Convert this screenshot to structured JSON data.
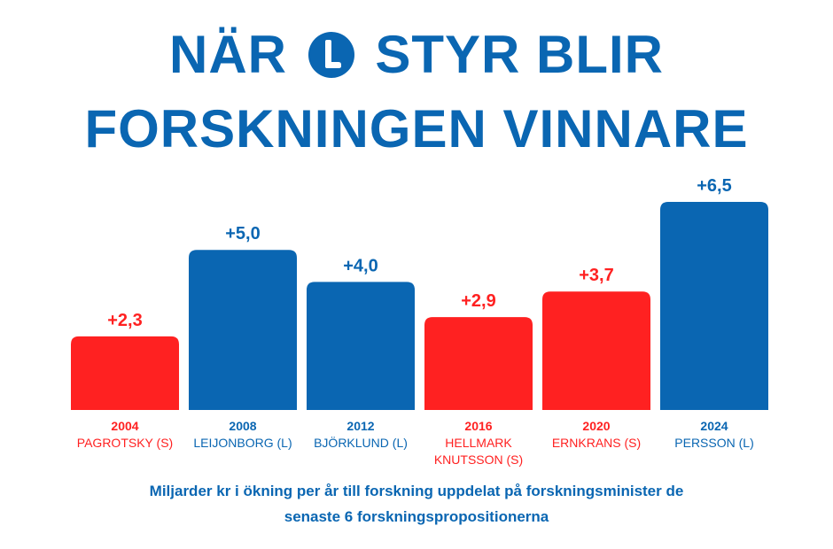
{
  "title": {
    "line1_before": "NÄR",
    "logo_letter": "L",
    "line1_after": "STYR BLIR",
    "line2": "FORSKNINGEN VINNARE"
  },
  "colors": {
    "blue": "#0a66b2",
    "red": "#ff2121"
  },
  "chart_data": {
    "type": "bar",
    "categories": [
      [
        "2004",
        "PAGROTSKY (S)"
      ],
      [
        "2008",
        "LEIJONBORG (L)"
      ],
      [
        "2012",
        "BJÖRKLUND (L)"
      ],
      [
        "2016",
        "HELLMARK",
        "KNUTSSON (S)"
      ],
      [
        "2020",
        "ERNKRANS (S)"
      ],
      [
        "2024",
        "PERSSON (L)"
      ]
    ],
    "values": [
      2.3,
      5.0,
      4.0,
      2.9,
      3.7,
      6.5
    ],
    "data_labels": [
      "+2,3",
      "+5,0",
      "+4,0",
      "+2,9",
      "+3,7",
      "+6,5"
    ],
    "party": [
      "S",
      "L",
      "L",
      "S",
      "S",
      "L"
    ],
    "bar_colors": [
      "#ff2121",
      "#0a66b2",
      "#0a66b2",
      "#ff2121",
      "#ff2121",
      "#0a66b2"
    ],
    "ylim": [
      0,
      6.5
    ],
    "grid": false,
    "axes_visible": false
  },
  "subtitle": {
    "line1": "Miljarder kr i ökning per år till forskning uppdelat på forskningsminister de",
    "line2": "senaste 6 forskningspropositionerna"
  }
}
